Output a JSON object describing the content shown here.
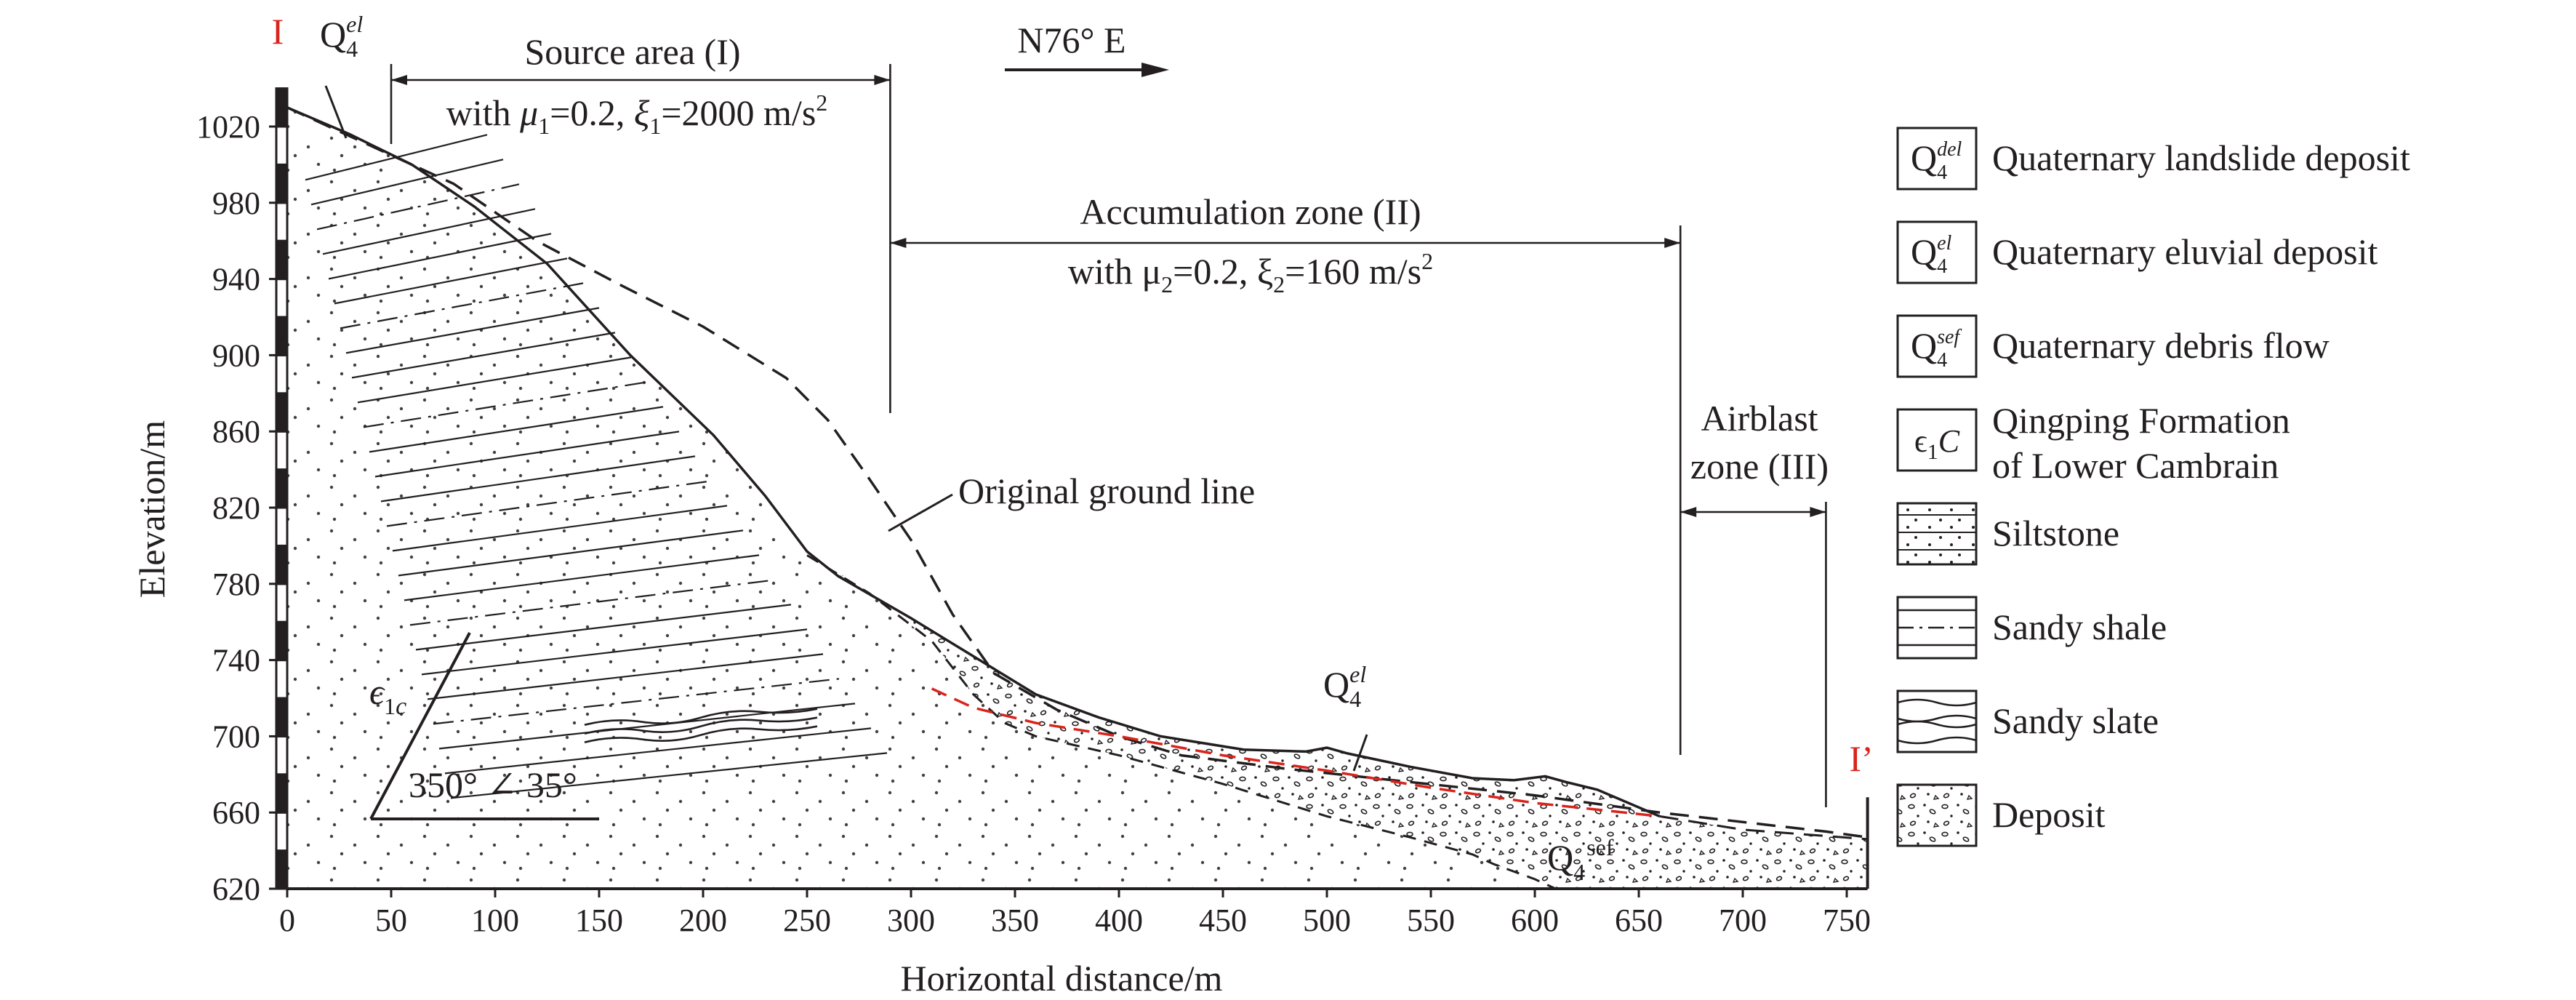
{
  "section": {
    "start_label": "I",
    "end_label": "I’",
    "direction_label": "N76° E"
  },
  "axes": {
    "x_label": "Horizontal distance/m",
    "y_label": "Elevation/m",
    "x_ticks": [
      "0",
      "50",
      "100",
      "150",
      "200",
      "250",
      "300",
      "350",
      "400",
      "450",
      "500",
      "550",
      "600",
      "650",
      "700",
      "750"
    ],
    "y_ticks": [
      "620",
      "660",
      "700",
      "740",
      "780",
      "820",
      "860",
      "900",
      "940",
      "980",
      "1020"
    ],
    "x_range": [
      0,
      760
    ],
    "y_range": [
      620,
      1040
    ]
  },
  "zones": {
    "source": {
      "title": "Source area (I)",
      "params": "with μ1=0.2, ξ1=2000 m/s2",
      "x_from": 50,
      "x_to": 290
    },
    "accumulation": {
      "title": "Accumulation zone (II)",
      "params": "with μ2=0.2, ξ2=160 m/s2",
      "x_from": 290,
      "x_to": 670
    },
    "airblast": {
      "title_line1": "Airblast",
      "title_line2": "zone (III)",
      "x_from": 670,
      "x_to": 740
    }
  },
  "annotations": {
    "original_ground_line": "Original ground line",
    "formation_label": "ϵ1c",
    "dip_label": "350° ∠ 35°",
    "q4el_top": "Q4el",
    "q4el_mid": "Q4el",
    "q4sef": "Q4sef"
  },
  "legend": [
    {
      "symbol": "Q4del",
      "label": "Quaternary landslide deposit"
    },
    {
      "symbol": "Q4el",
      "label": "Quaternary eluvial deposit"
    },
    {
      "symbol": "Q4sef",
      "label": "Quaternary debris flow"
    },
    {
      "symbol": "ϵ1C",
      "label": "Qingping Formation",
      "label2": "of Lower Cambrain"
    },
    {
      "symbol": "siltstone",
      "label": "Siltstone"
    },
    {
      "symbol": "sandy-shale",
      "label": "Sandy shale"
    },
    {
      "symbol": "sandy-slate",
      "label": "Sandy slate"
    },
    {
      "symbol": "deposit",
      "label": "Deposit"
    }
  ],
  "profiles": {
    "ground_surface": [
      [
        0,
        1030
      ],
      [
        30,
        1016
      ],
      [
        60,
        1000
      ],
      [
        90,
        978
      ],
      [
        125,
        948
      ],
      [
        165,
        900
      ],
      [
        205,
        858
      ],
      [
        230,
        826
      ],
      [
        250,
        797
      ],
      [
        265,
        784
      ],
      [
        300,
        762
      ],
      [
        330,
        742
      ],
      [
        360,
        722
      ],
      [
        390,
        710
      ],
      [
        420,
        700
      ],
      [
        460,
        693
      ],
      [
        490,
        692
      ],
      [
        500,
        694
      ],
      [
        510,
        691
      ],
      [
        540,
        684
      ],
      [
        570,
        678
      ],
      [
        590,
        677
      ],
      [
        605,
        679
      ],
      [
        615,
        676
      ],
      [
        630,
        672
      ],
      [
        660,
        658
      ]
    ],
    "original_ground_line": [
      [
        0,
        1030
      ],
      [
        40,
        1010
      ],
      [
        80,
        990
      ],
      [
        120,
        960
      ],
      [
        160,
        937
      ],
      [
        200,
        915
      ],
      [
        240,
        888
      ],
      [
        260,
        866
      ],
      [
        280,
        835
      ],
      [
        300,
        803
      ],
      [
        320,
        764
      ],
      [
        340,
        733
      ],
      [
        370,
        714
      ],
      [
        400,
        700
      ],
      [
        430,
        690
      ],
      [
        480,
        683
      ],
      [
        540,
        676
      ],
      [
        600,
        669
      ],
      [
        660,
        660
      ],
      [
        740,
        650
      ],
      [
        760,
        647
      ]
    ],
    "deposit_base": [
      [
        250,
        795
      ],
      [
        280,
        775
      ],
      [
        310,
        750
      ],
      [
        330,
        722
      ],
      [
        345,
        707
      ],
      [
        360,
        700
      ],
      [
        400,
        690
      ],
      [
        450,
        675
      ],
      [
        500,
        658
      ],
      [
        540,
        647
      ],
      [
        570,
        638
      ],
      [
        580,
        633
      ],
      [
        600,
        625
      ],
      [
        610,
        620
      ]
    ],
    "sliding_surface": [
      [
        310,
        725
      ],
      [
        330,
        715
      ],
      [
        360,
        707
      ],
      [
        400,
        700
      ],
      [
        450,
        690
      ],
      [
        500,
        682
      ],
      [
        550,
        673
      ],
      [
        600,
        665
      ],
      [
        660,
        658
      ]
    ],
    "deposit_top_right": [
      [
        660,
        658
      ],
      [
        700,
        651
      ],
      [
        760,
        646
      ]
    ]
  }
}
